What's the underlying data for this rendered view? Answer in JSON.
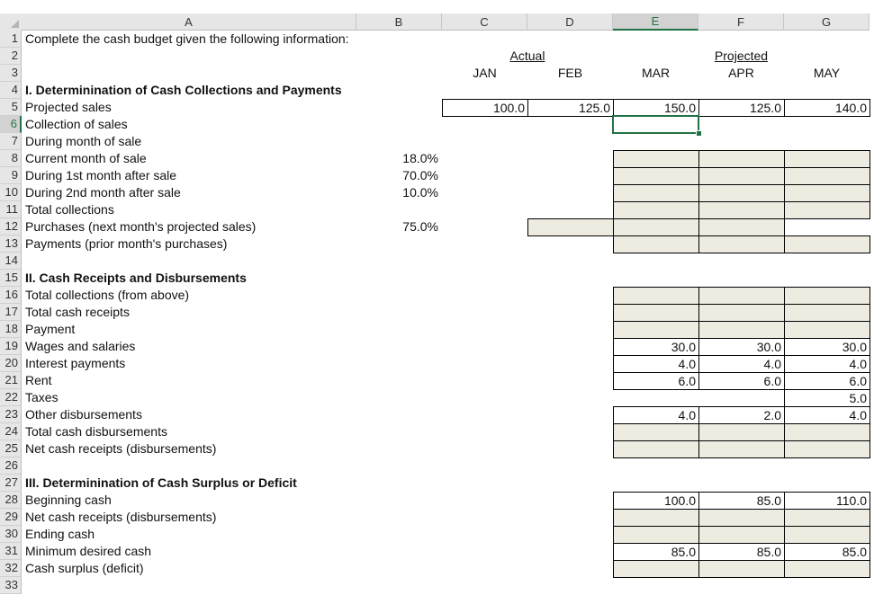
{
  "columns": [
    "A",
    "B",
    "C",
    "D",
    "E",
    "F",
    "G"
  ],
  "selected_column": "E",
  "selected_row": 6,
  "rows": {
    "1": "Complete the cash budget given the following information:",
    "4": "I. Determinination of Cash Collections and Payments",
    "5": "Projected sales",
    "6": "Collection of sales",
    "7": "During month of sale",
    "8": "Current month of sale",
    "9": "During 1st month after sale",
    "10": "During 2nd month after sale",
    "11": "Total collections",
    "12": "Purchases (next month's projected sales)",
    "13": "Payments (prior month's purchases)",
    "15": "II. Cash Receipts and Disbursements",
    "16": "Total collections (from above)",
    "17": "Total cash receipts",
    "18": "Payment",
    "19": "Wages and salaries",
    "20": "Interest payments",
    "21": "Rent",
    "22": "Taxes",
    "23": "Other disbursements",
    "24": "Total cash disbursements",
    "25": "Net cash receipts (disbursements)",
    "27": "III. Determinination of Cash Surplus or Deficit",
    "28": "Beginning cash",
    "29": "Net cash receipts (disbursements)",
    "30": "Ending cash",
    "31": "Minimum desired cash",
    "32": "Cash surplus (deficit)"
  },
  "bold_rows": [
    4,
    15,
    27
  ],
  "headers": {
    "actual": "Actual",
    "projected": "Projected",
    "months": [
      "JAN",
      "FEB",
      "MAR",
      "APR",
      "MAY"
    ]
  },
  "percentages": {
    "8": "18.0%",
    "9": "70.0%",
    "10": "10.0%",
    "12": "75.0%"
  },
  "values": {
    "5": {
      "C": "100.0",
      "D": "125.0",
      "E": "150.0",
      "F": "125.0",
      "G": "140.0"
    },
    "19": {
      "E": "30.0",
      "F": "30.0",
      "G": "30.0"
    },
    "20": {
      "E": "4.0",
      "F": "4.0",
      "G": "4.0"
    },
    "21": {
      "E": "6.0",
      "F": "6.0",
      "G": "6.0"
    },
    "22": {
      "G": "5.0"
    },
    "23": {
      "E": "4.0",
      "F": "2.0",
      "G": "4.0"
    },
    "28": {
      "E": "100.0",
      "F": "85.0",
      "G": "110.0"
    },
    "31": {
      "E": "85.0",
      "F": "85.0",
      "G": "85.0"
    }
  },
  "colors": {
    "shaded_input": "#eeece1",
    "selection": "#217346",
    "header_bg": "#e6e6e6"
  }
}
